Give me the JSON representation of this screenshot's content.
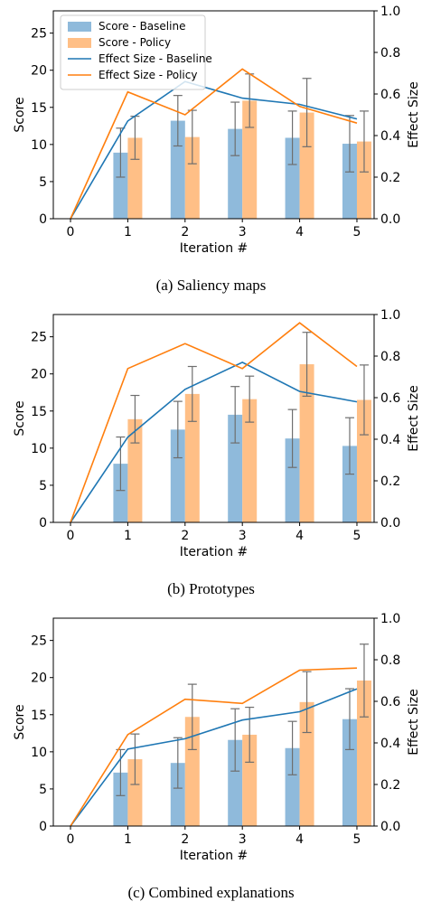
{
  "colors": {
    "baseline_bar": "#8fbadb",
    "policy_bar": "#ffbf86",
    "baseline_line": "#1f77b4",
    "policy_line": "#ff7f0e",
    "error_bar": "#6e6e6e"
  },
  "chart_data": [
    {
      "type": "bar",
      "caption": "(a) Saliency maps",
      "xlabel": "Iteration #",
      "ylabel": "Score",
      "y2label": "Effect Size",
      "x": [
        0,
        1,
        2,
        3,
        4,
        5
      ],
      "ylim": [
        0,
        28
      ],
      "yticks": [
        0,
        5,
        10,
        15,
        20,
        25
      ],
      "y2lim": [
        0,
        1.0
      ],
      "y2ticks": [
        "0.0",
        "0.2",
        "0.4",
        "0.6",
        "0.8",
        "1.0"
      ],
      "legend": {
        "placement": "top-left",
        "entries": [
          "Score - Baseline",
          "Score - Policy",
          "Effect Size - Baseline",
          "Effect Size - Policy"
        ]
      },
      "series": [
        {
          "name": "Score - Baseline",
          "kind": "bar",
          "x": [
            1,
            2,
            3,
            4,
            5
          ],
          "values": [
            8.9,
            13.2,
            12.1,
            10.9,
            10.1
          ],
          "errors": [
            3.3,
            3.4,
            3.6,
            3.6,
            3.8
          ]
        },
        {
          "name": "Score - Policy",
          "kind": "bar",
          "x": [
            1,
            2,
            3,
            4,
            5
          ],
          "values": [
            10.9,
            11.0,
            15.9,
            14.3,
            10.4
          ],
          "errors": [
            2.9,
            3.6,
            3.6,
            4.6,
            4.1
          ]
        },
        {
          "name": "Effect Size - Baseline",
          "kind": "line",
          "x": [
            0,
            1,
            2,
            3,
            4,
            5
          ],
          "values": [
            0.0,
            0.47,
            0.66,
            0.58,
            0.55,
            0.48
          ]
        },
        {
          "name": "Effect Size - Policy",
          "kind": "line",
          "x": [
            0,
            1,
            2,
            3,
            4,
            5
          ],
          "values": [
            0.0,
            0.61,
            0.5,
            0.72,
            0.54,
            0.46
          ]
        }
      ]
    },
    {
      "type": "bar",
      "caption": "(b) Prototypes",
      "xlabel": "Iteration #",
      "ylabel": "Score",
      "y2label": "Effect Size",
      "x": [
        0,
        1,
        2,
        3,
        4,
        5
      ],
      "ylim": [
        0,
        28
      ],
      "yticks": [
        0,
        5,
        10,
        15,
        20,
        25
      ],
      "y2lim": [
        0,
        1.0
      ],
      "y2ticks": [
        "0.0",
        "0.2",
        "0.4",
        "0.6",
        "0.8",
        "1.0"
      ],
      "series": [
        {
          "name": "Score - Baseline",
          "kind": "bar",
          "x": [
            1,
            2,
            3,
            4,
            5
          ],
          "values": [
            7.9,
            12.5,
            14.5,
            11.3,
            10.3
          ],
          "errors": [
            3.6,
            3.8,
            3.8,
            3.9,
            3.8
          ]
        },
        {
          "name": "Score - Policy",
          "kind": "bar",
          "x": [
            1,
            2,
            3,
            4,
            5
          ],
          "values": [
            13.9,
            17.3,
            16.6,
            21.3,
            16.5
          ],
          "errors": [
            3.2,
            3.7,
            3.1,
            4.3,
            4.7
          ]
        },
        {
          "name": "Effect Size - Baseline",
          "kind": "line",
          "x": [
            0,
            1,
            2,
            3,
            4,
            5
          ],
          "values": [
            0.0,
            0.41,
            0.64,
            0.77,
            0.63,
            0.58
          ]
        },
        {
          "name": "Effect Size - Policy",
          "kind": "line",
          "x": [
            0,
            1,
            2,
            3,
            4,
            5
          ],
          "values": [
            0.0,
            0.74,
            0.86,
            0.74,
            0.96,
            0.75
          ]
        }
      ]
    },
    {
      "type": "bar",
      "caption": "(c) Combined explanations",
      "xlabel": "Iteration #",
      "ylabel": "Score",
      "y2label": "Effect Size",
      "x": [
        0,
        1,
        2,
        3,
        4,
        5
      ],
      "ylim": [
        0,
        28
      ],
      "yticks": [
        0,
        5,
        10,
        15,
        20,
        25
      ],
      "y2lim": [
        0,
        1.0
      ],
      "y2ticks": [
        "0.0",
        "0.2",
        "0.4",
        "0.6",
        "0.8",
        "1.0"
      ],
      "series": [
        {
          "name": "Score - Baseline",
          "kind": "bar",
          "x": [
            1,
            2,
            3,
            4,
            5
          ],
          "values": [
            7.2,
            8.5,
            11.6,
            10.5,
            14.4
          ],
          "errors": [
            3.1,
            3.4,
            4.2,
            3.6,
            4.1
          ]
        },
        {
          "name": "Score - Policy",
          "kind": "bar",
          "x": [
            1,
            2,
            3,
            4,
            5
          ],
          "values": [
            9.0,
            14.7,
            12.3,
            16.7,
            19.6
          ],
          "errors": [
            3.4,
            4.4,
            3.7,
            4.1,
            4.9
          ]
        },
        {
          "name": "Effect Size - Baseline",
          "kind": "line",
          "x": [
            0,
            1,
            2,
            3,
            4,
            5
          ],
          "values": [
            0.0,
            0.37,
            0.42,
            0.51,
            0.55,
            0.66
          ]
        },
        {
          "name": "Effect Size - Policy",
          "kind": "line",
          "x": [
            0,
            1,
            2,
            3,
            4,
            5
          ],
          "values": [
            0.0,
            0.44,
            0.61,
            0.59,
            0.75,
            0.76
          ]
        }
      ]
    }
  ]
}
